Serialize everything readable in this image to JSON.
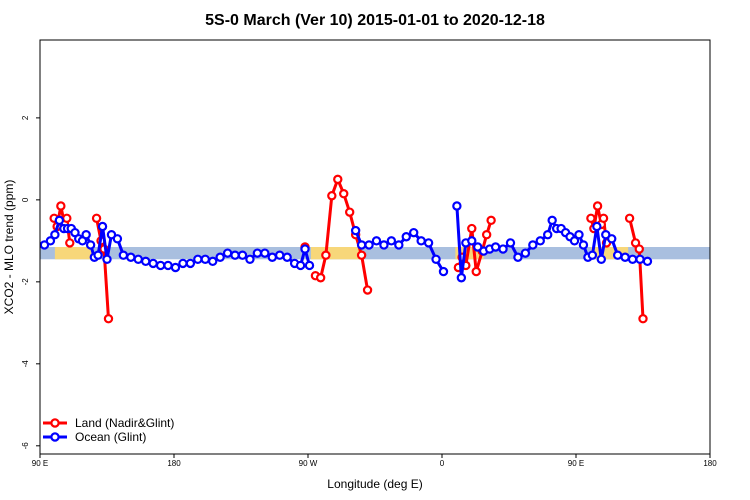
{
  "chart_data": {
    "type": "line",
    "title": "5S-0 March (Ver 10)   2015-01-01 to 2020-12-18",
    "xlabel": "Longitude (deg E)",
    "ylabel": "XCO2 - MLO trend (ppm)",
    "xlim": [
      90,
      540
    ],
    "ylim": [
      -6.2,
      3.9
    ],
    "x_ticks": [
      {
        "value": 90,
        "label": "90 E"
      },
      {
        "value": 180,
        "label": "180"
      },
      {
        "value": 270,
        "label": "90 W"
      },
      {
        "value": 360,
        "label": "0"
      },
      {
        "value": 450,
        "label": "90 E"
      },
      {
        "value": 540,
        "label": "180"
      }
    ],
    "y_ticks": [
      {
        "value": 2,
        "label": "2"
      },
      {
        "value": 0,
        "label": "0"
      },
      {
        "value": -2,
        "label": "-2"
      },
      {
        "value": -4,
        "label": "-4"
      },
      {
        "value": -6,
        "label": "-6"
      }
    ],
    "band": {
      "ymin": -1.45,
      "ymax": -1.15,
      "color": "#a9bfdf"
    },
    "land_band_segments": [
      [
        100,
        125
      ],
      [
        272,
        306
      ],
      [
        369,
        388
      ],
      [
        460,
        485
      ]
    ],
    "land_band_color": "#f7d77a",
    "legend": {
      "position": "bottom-left"
    },
    "series": [
      {
        "name": "Land (Nadir&Glint)",
        "color": "#ff0000",
        "segments": [
          [
            [
              99.5,
              -0.45
            ],
            [
              101.5,
              -0.65
            ],
            [
              104,
              -0.15
            ],
            [
              106.5,
              -0.6
            ],
            [
              108,
              -0.45
            ],
            [
              110,
              -1.05
            ]
          ],
          [
            [
              128,
              -0.45
            ],
            [
              131,
              -1.0
            ],
            [
              133,
              -1.2
            ],
            [
              136,
              -2.9
            ]
          ],
          [
            [
              268,
              -1.15
            ]
          ],
          [
            [
              275,
              -1.85
            ],
            [
              278.5,
              -1.9
            ],
            [
              282,
              -1.35
            ],
            [
              286,
              0.1
            ],
            [
              290,
              0.5
            ],
            [
              294,
              0.15
            ],
            [
              298,
              -0.3
            ],
            [
              302,
              -0.85
            ],
            [
              306,
              -1.35
            ],
            [
              310,
              -2.2
            ]
          ],
          [
            [
              371,
              -1.65
            ],
            [
              373.5,
              -1.4
            ],
            [
              376,
              -1.6
            ],
            [
              380,
              -0.7
            ],
            [
              383,
              -1.75
            ],
            [
              387,
              -1.25
            ],
            [
              390,
              -0.85
            ],
            [
              393,
              -0.5
            ]
          ],
          [
            [
              460,
              -0.45
            ],
            [
              462,
              -0.7
            ],
            [
              464.5,
              -0.15
            ],
            [
              467,
              -0.6
            ],
            [
              468.5,
              -0.45
            ],
            [
              470.5,
              -1.05
            ]
          ],
          [
            [
              486,
              -0.45
            ],
            [
              490,
              -1.05
            ],
            [
              492.5,
              -1.2
            ],
            [
              495,
              -2.9
            ]
          ]
        ]
      },
      {
        "name": "Ocean (Glint)",
        "color": "#0000ff",
        "segments": [
          [
            [
              93,
              -1.1
            ],
            [
              97,
              -1.0
            ],
            [
              100,
              -0.85
            ],
            [
              103,
              -0.5
            ],
            [
              106,
              -0.7
            ],
            [
              108.5,
              -0.7
            ],
            [
              111,
              -0.7
            ],
            [
              113.5,
              -0.8
            ],
            [
              116,
              -0.95
            ],
            [
              118.5,
              -1.0
            ],
            [
              121,
              -0.85
            ],
            [
              124,
              -1.1
            ],
            [
              126.5,
              -1.4
            ],
            [
              129,
              -1.35
            ],
            [
              132,
              -0.65
            ],
            [
              135,
              -1.45
            ],
            [
              138,
              -0.85
            ],
            [
              142,
              -0.95
            ],
            [
              146,
              -1.35
            ],
            [
              151,
              -1.4
            ],
            [
              156,
              -1.45
            ],
            [
              161,
              -1.5
            ],
            [
              166,
              -1.55
            ],
            [
              171,
              -1.6
            ],
            [
              176,
              -1.6
            ],
            [
              181,
              -1.65
            ],
            [
              186,
              -1.55
            ],
            [
              191,
              -1.55
            ],
            [
              196,
              -1.45
            ],
            [
              201,
              -1.45
            ],
            [
              206,
              -1.5
            ],
            [
              211,
              -1.4
            ],
            [
              216,
              -1.3
            ],
            [
              221,
              -1.35
            ],
            [
              226,
              -1.35
            ],
            [
              231,
              -1.45
            ],
            [
              236,
              -1.3
            ],
            [
              241,
              -1.3
            ],
            [
              246,
              -1.4
            ],
            [
              251,
              -1.35
            ],
            [
              256,
              -1.4
            ],
            [
              261,
              -1.55
            ],
            [
              265,
              -1.6
            ],
            [
              268,
              -1.2
            ],
            [
              271,
              -1.6
            ]
          ],
          [
            [
              302,
              -0.75
            ],
            [
              306,
              -1.1
            ],
            [
              311,
              -1.1
            ],
            [
              316,
              -1.0
            ],
            [
              321,
              -1.1
            ],
            [
              326,
              -1.0
            ],
            [
              331,
              -1.1
            ],
            [
              336,
              -0.9
            ],
            [
              341,
              -0.8
            ],
            [
              346,
              -1.0
            ],
            [
              351,
              -1.05
            ],
            [
              356,
              -1.45
            ],
            [
              361,
              -1.75
            ]
          ],
          [
            [
              370,
              -0.15
            ],
            [
              373,
              -1.9
            ],
            [
              376,
              -1.05
            ],
            [
              380,
              -1.0
            ],
            [
              384,
              -1.15
            ],
            [
              388,
              -1.25
            ],
            [
              392,
              -1.2
            ],
            [
              396,
              -1.15
            ],
            [
              401,
              -1.2
            ],
            [
              406,
              -1.05
            ],
            [
              411,
              -1.4
            ],
            [
              416,
              -1.3
            ],
            [
              421,
              -1.1
            ],
            [
              426,
              -1.0
            ],
            [
              431,
              -0.85
            ],
            [
              434,
              -0.5
            ],
            [
              437,
              -0.7
            ],
            [
              440,
              -0.7
            ],
            [
              443,
              -0.8
            ],
            [
              446,
              -0.9
            ],
            [
              449,
              -1.0
            ],
            [
              452,
              -0.85
            ],
            [
              455,
              -1.1
            ],
            [
              458,
              -1.4
            ],
            [
              461,
              -1.35
            ],
            [
              464,
              -0.65
            ],
            [
              467,
              -1.45
            ],
            [
              470,
              -0.85
            ],
            [
              474,
              -0.95
            ],
            [
              478,
              -1.35
            ],
            [
              483,
              -1.4
            ],
            [
              488,
              -1.45
            ],
            [
              493,
              -1.45
            ],
            [
              498,
              -1.5
            ]
          ]
        ]
      }
    ]
  }
}
